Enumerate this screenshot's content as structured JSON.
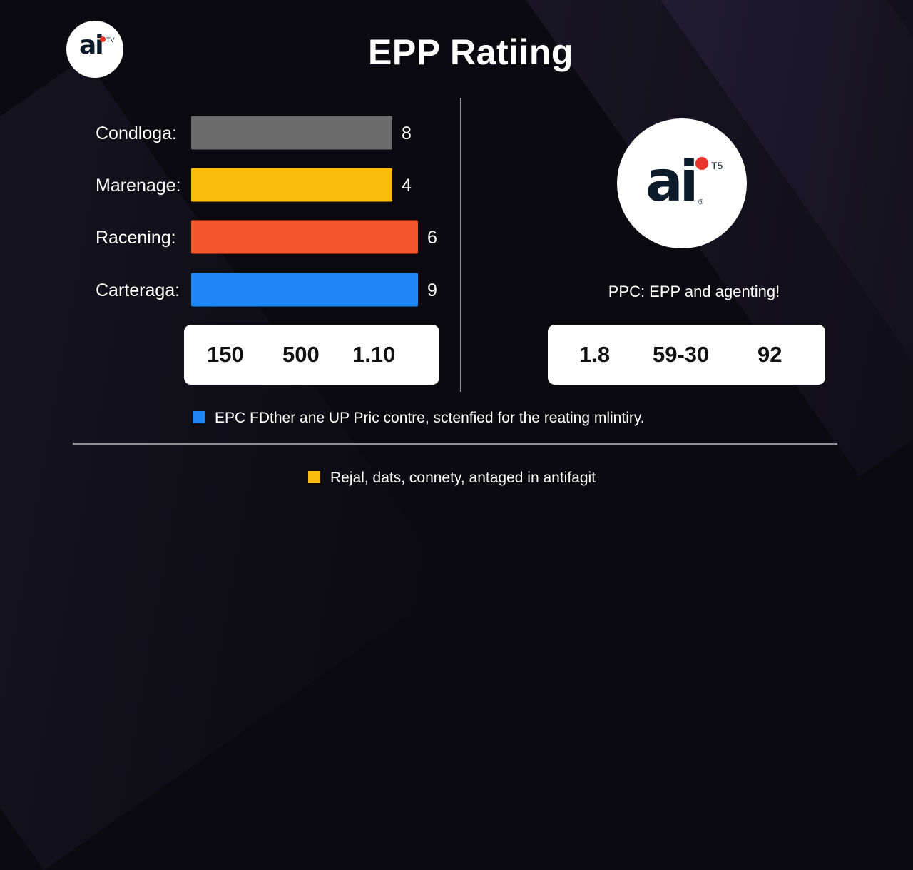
{
  "title": "EPP Ratiing",
  "logo": {
    "text": "ai",
    "sup": "TV"
  },
  "logo_large": {
    "text": "ai",
    "sup": "T5",
    "reg": "®"
  },
  "chart_data": {
    "type": "bar",
    "orientation": "horizontal",
    "categories": [
      "Condloga:",
      "Marenage:",
      "Racening:",
      "Carteraga:"
    ],
    "values": [
      8,
      4,
      6,
      9
    ],
    "value_labels": [
      "8",
      "4",
      "6",
      "9"
    ],
    "colors": [
      "#6b6b6b",
      "#fbbc0f",
      "#f4552a",
      "#1b86f4"
    ],
    "title": "EPP Ratiing",
    "xlabel": "",
    "ylabel": "",
    "grid": false,
    "legend": "none"
  },
  "stats_left": [
    "150",
    "500",
    "1.10"
  ],
  "stats_right": [
    "1.8",
    "59-30",
    "92"
  ],
  "tagline": "PPC: EPP and agenting!",
  "legend": [
    {
      "text": "EPC FDther ane UP Pric contre, sctenfied for the reating mlintiry.",
      "color": "#1b86f4"
    },
    {
      "text": "Rejal, dats, connety, antaged in antifagit",
      "color": "#fbbc0f"
    }
  ]
}
